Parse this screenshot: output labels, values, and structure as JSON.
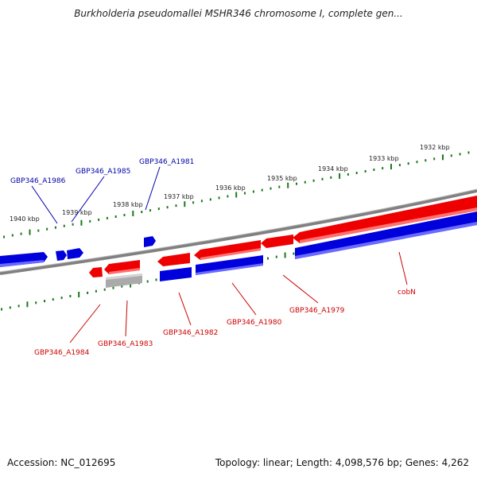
{
  "title": "Burkholderia pseudomallei MSHR346 chromosome I, complete gen...",
  "accession_label": "Accession: NC_012695",
  "topology_label": "Topology: linear; Length: 4,098,576 bp; Genes: 4,262",
  "colors": {
    "forward_gene": "#ee0000",
    "reverse_gene": "#0000dd",
    "pseudo_gene": "#aaaaaa",
    "chromosome": "#808080",
    "ruler": "#1a7a1a",
    "top_labels": "#0000aa",
    "bottom_labels": "#cc0000"
  },
  "ruler_ticks": [
    {
      "label": "1940 kbp"
    },
    {
      "label": "1939 kbp"
    },
    {
      "label": "1938 kbp"
    },
    {
      "label": "1937 kbp"
    },
    {
      "label": "1936 kbp"
    },
    {
      "label": "1935 kbp"
    },
    {
      "label": "1934 kbp"
    },
    {
      "label": "1933 kbp"
    },
    {
      "label": "1932 kbp"
    }
  ],
  "top_gene_labels": [
    {
      "id": "GBP346_A1986",
      "text": "GBP346_A1986"
    },
    {
      "id": "GBP346_A1985",
      "text": "GBP346_A1985"
    },
    {
      "id": "GBP346_A1981",
      "text": "GBP346_A1981"
    }
  ],
  "bottom_gene_labels": [
    {
      "id": "GBP346_A1984",
      "text": "GBP346_A1984"
    },
    {
      "id": "GBP346_A1983",
      "text": "GBP346_A1983"
    },
    {
      "id": "GBP346_A1982",
      "text": "GBP346_A1982"
    },
    {
      "id": "GBP346_A1980",
      "text": "GBP346_A1980"
    },
    {
      "id": "GBP346_A1979",
      "text": "GBP346_A1979"
    },
    {
      "id": "cobN",
      "text": "cobN"
    }
  ]
}
